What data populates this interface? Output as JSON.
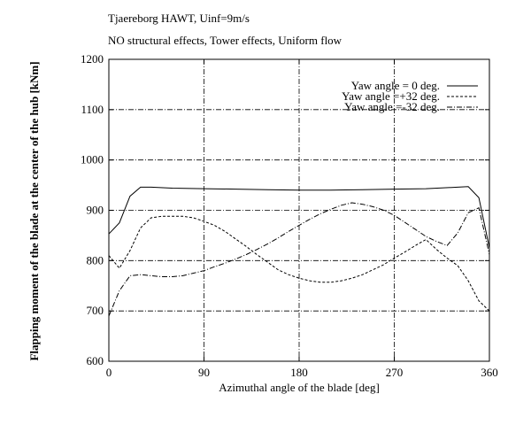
{
  "chart_data": {
    "type": "line",
    "title": "Tjaereborg HAWT, Uinf=9m/s",
    "subtitle": "NO structural effects, Tower effects, Uniform flow",
    "xlabel": "Azimuthal angle of the blade [deg]",
    "ylabel": "Flapping moment of the blade at the center of the hub [kNm]",
    "xlim": [
      0,
      360
    ],
    "ylim": [
      600,
      1200
    ],
    "xticks": [
      0,
      90,
      180,
      270,
      360
    ],
    "yticks": [
      600,
      700,
      800,
      900,
      1000,
      1100,
      1200
    ],
    "grid": true,
    "legend_position": "top-right",
    "series": [
      {
        "name": "Yaw angle =  0 deg.",
        "style": "solid",
        "x": [
          0,
          10,
          20,
          30,
          40,
          60,
          90,
          120,
          150,
          180,
          210,
          240,
          270,
          300,
          330,
          340,
          350,
          360
        ],
        "values": [
          853,
          875,
          928,
          946,
          946,
          944,
          943,
          942,
          941,
          940,
          940,
          941,
          942,
          943,
          946,
          947,
          925,
          825
        ]
      },
      {
        "name": "Yaw angle =+32 deg.",
        "style": "dashed",
        "x": [
          0,
          10,
          20,
          30,
          40,
          50,
          60,
          70,
          80,
          90,
          100,
          110,
          120,
          130,
          140,
          150,
          160,
          170,
          180,
          190,
          200,
          210,
          220,
          230,
          240,
          250,
          260,
          270,
          280,
          290,
          300,
          310,
          320,
          330,
          340,
          350,
          360
        ],
        "values": [
          810,
          785,
          820,
          865,
          885,
          888,
          888,
          888,
          885,
          878,
          870,
          858,
          843,
          828,
          812,
          797,
          782,
          772,
          765,
          760,
          757,
          757,
          760,
          765,
          772,
          782,
          792,
          805,
          817,
          830,
          842,
          822,
          805,
          790,
          760,
          720,
          700
        ]
      },
      {
        "name": "Yaw angle =-32 deg.",
        "style": "dashdot",
        "x": [
          0,
          10,
          20,
          30,
          40,
          50,
          60,
          70,
          80,
          90,
          100,
          110,
          120,
          130,
          140,
          150,
          160,
          170,
          180,
          190,
          200,
          210,
          220,
          230,
          240,
          250,
          260,
          270,
          280,
          290,
          300,
          310,
          320,
          330,
          340,
          350,
          360
        ],
        "values": [
          690,
          740,
          770,
          772,
          770,
          768,
          768,
          770,
          775,
          780,
          788,
          795,
          803,
          812,
          822,
          833,
          845,
          858,
          870,
          882,
          893,
          902,
          910,
          915,
          912,
          907,
          900,
          890,
          876,
          862,
          848,
          838,
          830,
          855,
          895,
          905,
          812
        ]
      }
    ]
  }
}
